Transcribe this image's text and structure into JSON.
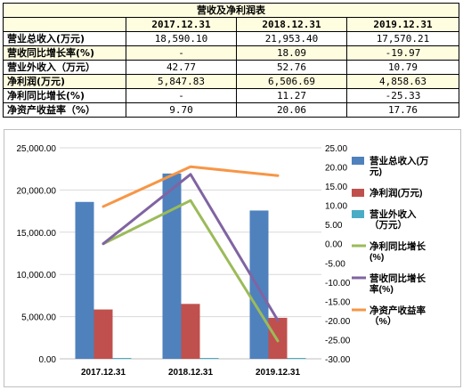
{
  "table": {
    "title": "营收及净利润表",
    "headers": [
      "",
      "2017.12.31",
      "2018.12.31",
      "2019.12.31"
    ],
    "rows": [
      {
        "label": "营业总收入(万元)",
        "values": [
          "18,590.10",
          "21,953.40",
          "17,570.21"
        ]
      },
      {
        "label": "营收同比增长率(%)",
        "values": [
          "-",
          "18.09",
          "-19.97"
        ]
      },
      {
        "label": "营业外收入（万元）",
        "values": [
          "42.77",
          "52.76",
          "10.79"
        ]
      },
      {
        "label": "净利润(万元)",
        "values": [
          "5,847.83",
          "6,506.69",
          "4,858.63"
        ]
      },
      {
        "label": "净利同比增长(%)",
        "values": [
          "-",
          "11.27",
          "-25.33"
        ]
      },
      {
        "label": "净资产收益率（%）",
        "values": [
          "9.70",
          "20.06",
          "17.76"
        ]
      }
    ]
  },
  "chart_data": {
    "type": "bar",
    "categories": [
      "2017.12.31",
      "2018.12.31",
      "2019.12.31"
    ],
    "y_left": {
      "lim": [
        0,
        25000
      ],
      "ticks": [
        "0.00",
        "5,000.00",
        "10,000.00",
        "15,000.00",
        "20,000.00",
        "25,000.00"
      ]
    },
    "y_right": {
      "lim": [
        -30,
        25
      ],
      "ticks": [
        "-30.00",
        "-25.00",
        "-20.00",
        "-15.00",
        "-10.00",
        "-5.00",
        "0.00",
        "5.00",
        "10.00",
        "15.00",
        "20.00",
        "25.00"
      ]
    },
    "series": [
      {
        "name": "营业总收入(万元)",
        "kind": "bar",
        "axis": "left",
        "color": "#4f81bd",
        "values": [
          18590.1,
          21953.4,
          17570.21
        ]
      },
      {
        "name": "净利润(万元)",
        "kind": "bar",
        "axis": "left",
        "color": "#c0504d",
        "values": [
          5847.83,
          6506.69,
          4858.63
        ]
      },
      {
        "name": "营业外收入（万元）",
        "kind": "bar",
        "axis": "left",
        "color": "#4bacc6",
        "values": [
          42.77,
          52.76,
          10.79
        ]
      },
      {
        "name": "净利同比增长(%)",
        "kind": "line",
        "axis": "right",
        "color": "#9bbb59",
        "values": [
          0,
          11.27,
          -25.33
        ]
      },
      {
        "name": "营收同比增长率(%)",
        "kind": "line",
        "axis": "right",
        "color": "#8064a2",
        "values": [
          0,
          18.09,
          -19.97
        ]
      },
      {
        "name": "净资产收益率（%）",
        "kind": "line",
        "axis": "right",
        "color": "#f79646",
        "values": [
          9.7,
          20.06,
          17.76
        ]
      }
    ],
    "legend": {
      "position": "right",
      "entries": [
        {
          "lines": [
            "营业总收入(万",
            "元)"
          ]
        },
        {
          "lines": [
            "净利润(万元)"
          ]
        },
        {
          "lines": [
            "营业外收入",
            "（万元）"
          ]
        },
        {
          "lines": [
            "净利同比增长",
            "(%)"
          ]
        },
        {
          "lines": [
            "营收同比增长",
            "率(%)"
          ]
        },
        {
          "lines": [
            "净资产收益率",
            "（%）"
          ]
        }
      ]
    },
    "grid": true
  }
}
